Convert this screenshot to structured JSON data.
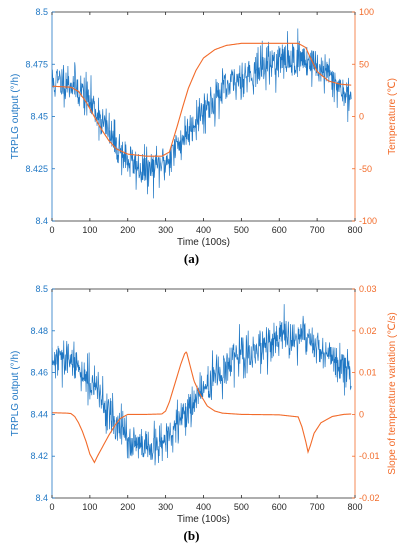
{
  "chart_data": [
    {
      "panel_label": "(a)",
      "type": "line",
      "xlabel": "Time (100s)",
      "xlim": [
        0,
        800
      ],
      "xticks": [
        0,
        100,
        200,
        300,
        400,
        500,
        600,
        700,
        800
      ],
      "left_axis": {
        "label": "TRPLG output (°/h)",
        "ylim": [
          8.4,
          8.5
        ],
        "ticks": [
          8.4,
          8.425,
          8.45,
          8.475,
          8.5
        ],
        "tick_labels": [
          "8.4",
          "8.425",
          "8.45",
          "8.475",
          "8.5"
        ],
        "color": "#1f77c4"
      },
      "right_axis": {
        "label": "Temperature (℃)",
        "ylim": [
          -100,
          100
        ],
        "ticks": [
          -100,
          -50,
          0,
          50,
          100
        ],
        "tick_labels": [
          "-100",
          "-50",
          "0",
          "50",
          "100"
        ],
        "color": "#f26b2a"
      },
      "series": [
        {
          "axis": "left",
          "color": "#1f77c4",
          "noise": 0.009,
          "x": [
            0,
            40,
            80,
            120,
            160,
            200,
            230,
            260,
            300,
            340,
            380,
            420,
            460,
            500,
            540,
            580,
            620,
            660,
            700,
            740,
            790
          ],
          "values": [
            8.466,
            8.467,
            8.462,
            8.452,
            8.439,
            8.429,
            8.425,
            8.424,
            8.428,
            8.438,
            8.449,
            8.457,
            8.463,
            8.469,
            8.472,
            8.476,
            8.477,
            8.478,
            8.474,
            8.468,
            8.458
          ]
        },
        {
          "axis": "right",
          "color": "#f26b2a",
          "x": [
            0,
            50,
            70,
            90,
            110,
            130,
            150,
            170,
            200,
            250,
            290,
            310,
            330,
            345,
            360,
            380,
            400,
            430,
            460,
            500,
            600,
            650,
            670,
            680,
            700,
            730,
            760,
            790
          ],
          "values": [
            29,
            28,
            24,
            14,
            1,
            -12,
            -23,
            -31,
            -36,
            -38,
            -38,
            -34,
            -10,
            9,
            27,
            44,
            56,
            64,
            68,
            70,
            70,
            70,
            66,
            58,
            43,
            34,
            31,
            30
          ]
        }
      ]
    },
    {
      "panel_label": "(b)",
      "type": "line",
      "xlabel": "Time (100s)",
      "xlim": [
        0,
        800
      ],
      "xticks": [
        0,
        100,
        200,
        300,
        400,
        500,
        600,
        700,
        800
      ],
      "left_axis": {
        "label": "TRPLG output (°/h)",
        "ylim": [
          8.4,
          8.5
        ],
        "ticks": [
          8.4,
          8.42,
          8.44,
          8.46,
          8.48,
          8.5
        ],
        "tick_labels": [
          "8.4",
          "8.42",
          "8.44",
          "8.46",
          "8.48",
          "8.5"
        ],
        "color": "#1f77c4"
      },
      "right_axis": {
        "label": "Slope of temperature variation (℃/s)",
        "ylim": [
          -0.02,
          0.03
        ],
        "ticks": [
          -0.02,
          -0.01,
          0,
          0.01,
          0.02,
          0.03
        ],
        "tick_labels": [
          "-0.02",
          "-0.01",
          "0",
          "0.01",
          "0.02",
          "0.03"
        ],
        "color": "#f26b2a"
      },
      "series": [
        {
          "axis": "left",
          "color": "#1f77c4",
          "noise": 0.009,
          "x": [
            0,
            40,
            80,
            120,
            160,
            200,
            230,
            260,
            300,
            340,
            380,
            420,
            460,
            500,
            540,
            580,
            620,
            660,
            700,
            740,
            790
          ],
          "values": [
            8.465,
            8.466,
            8.461,
            8.451,
            8.438,
            8.428,
            8.424,
            8.423,
            8.427,
            8.437,
            8.448,
            8.456,
            8.462,
            8.468,
            8.471,
            8.475,
            8.476,
            8.477,
            8.473,
            8.467,
            8.457
          ]
        },
        {
          "axis": "right",
          "color": "#f26b2a",
          "x": [
            0,
            40,
            50,
            60,
            70,
            80,
            90,
            100,
            112,
            120,
            135,
            150,
            165,
            180,
            200,
            250,
            290,
            300,
            310,
            320,
            330,
            340,
            350,
            355,
            365,
            375,
            390,
            410,
            430,
            450,
            500,
            600,
            650,
            660,
            670,
            676,
            682,
            692,
            710,
            740,
            770,
            790
          ],
          "values": [
            0.0004,
            0.0003,
            0.0002,
            -0.0005,
            -0.002,
            -0.004,
            -0.0065,
            -0.0095,
            -0.0115,
            -0.01,
            -0.0075,
            -0.005,
            -0.0028,
            -0.001,
            0.0,
            0.0,
            0.0001,
            0.0008,
            0.003,
            0.006,
            0.009,
            0.012,
            0.0145,
            0.015,
            0.0115,
            0.008,
            0.005,
            0.002,
            0.0008,
            0.0003,
            0.0,
            -0.0001,
            -0.0006,
            -0.003,
            -0.0065,
            -0.009,
            -0.0075,
            -0.0045,
            -0.002,
            -0.0005,
            0.0,
            0.0001
          ]
        }
      ]
    }
  ]
}
